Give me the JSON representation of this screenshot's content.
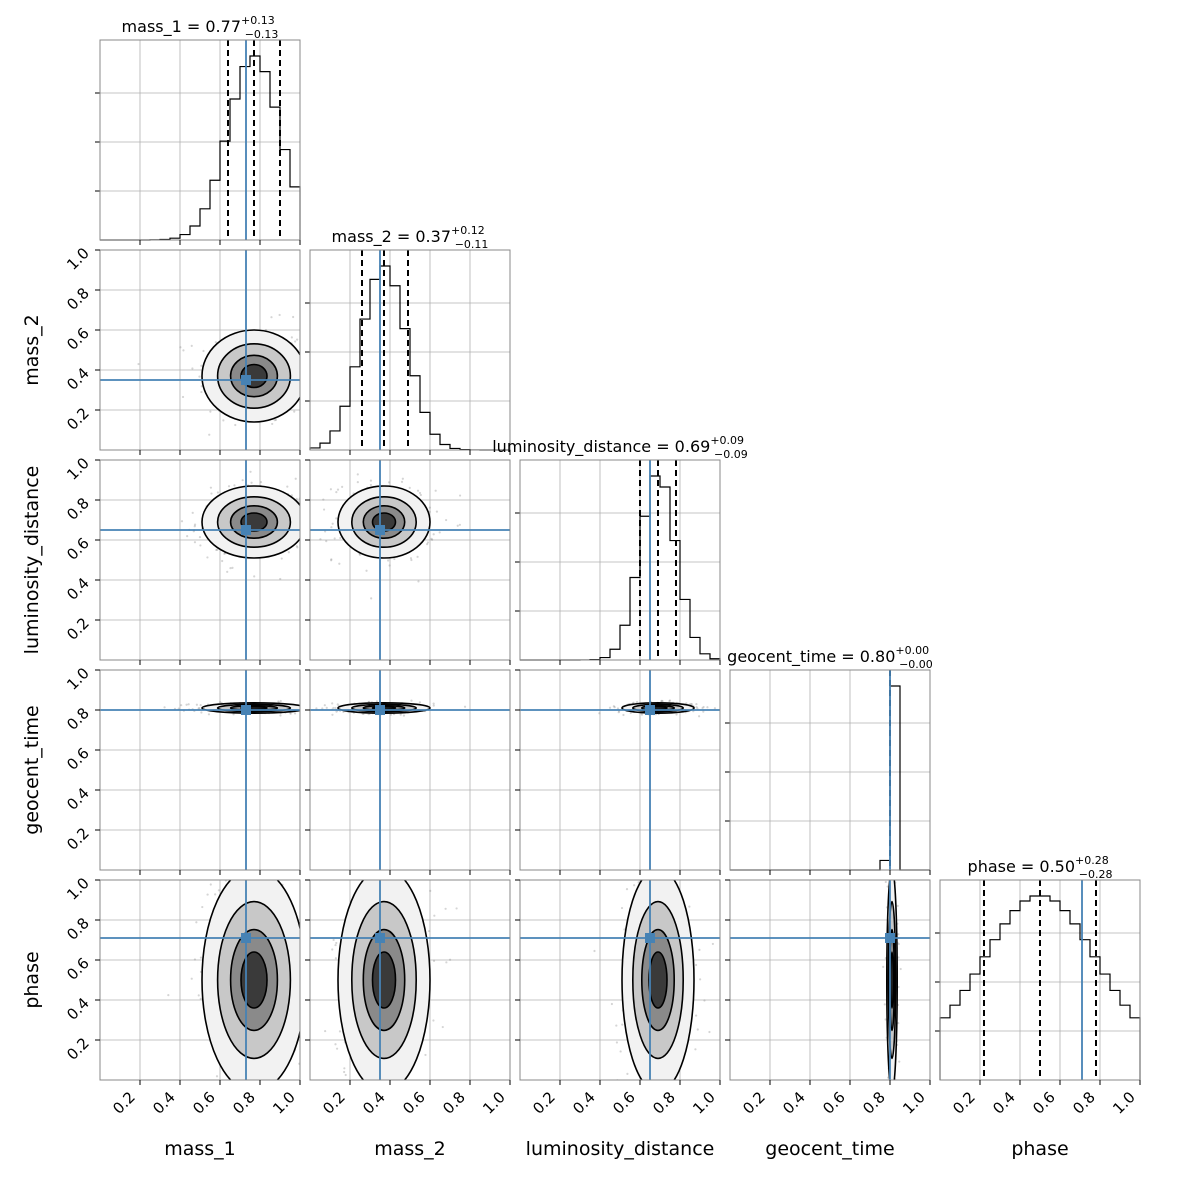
{
  "chart_data": {
    "type": "corner",
    "parameters": [
      "mass_1",
      "mass_2",
      "luminosity_distance",
      "geocent_time",
      "phase"
    ],
    "axis_labels": [
      "mass_1",
      "mass_2",
      "luminosity_distance",
      "geocent_time",
      "phase"
    ],
    "xlim": [
      0,
      1
    ],
    "ylim": [
      0,
      1
    ],
    "x_tick_labels": [
      "0.2",
      "0.4",
      "0.6",
      "0.8",
      "1.0"
    ],
    "y_tick_labels": [
      "0.2",
      "0.4",
      "0.6",
      "0.8",
      "1.0"
    ],
    "grid": true,
    "truth_color": "#4682b4",
    "truths": [
      0.73,
      0.35,
      0.65,
      0.8,
      0.71
    ],
    "titles": [
      {
        "param": "mass_1",
        "median": "0.77",
        "plus": "+0.13",
        "minus": "−0.13"
      },
      {
        "param": "mass_2",
        "median": "0.37",
        "plus": "+0.12",
        "minus": "−0.11"
      },
      {
        "param": "luminosity_distance",
        "median": "0.69",
        "plus": "+0.09",
        "minus": "−0.09"
      },
      {
        "param": "geocent_time",
        "median": "0.80",
        "plus": "+0.00",
        "minus": "−0.00"
      },
      {
        "param": "phase",
        "median": "0.50",
        "plus": "+0.28",
        "minus": "−0.28"
      }
    ],
    "quantiles": [
      [
        0.64,
        0.77,
        0.9
      ],
      [
        0.26,
        0.37,
        0.49
      ],
      [
        0.6,
        0.69,
        0.78
      ],
      [
        0.8,
        0.8,
        0.8
      ],
      [
        0.22,
        0.5,
        0.78
      ]
    ],
    "stats": [
      {
        "mean": 0.77,
        "sd": 0.13
      },
      {
        "mean": 0.37,
        "sd": 0.115
      },
      {
        "mean": 0.69,
        "sd": 0.09
      },
      {
        "mean": 0.81,
        "sd": 0.013
      },
      {
        "mean": 0.5,
        "sd": 0.28
      }
    ]
  }
}
